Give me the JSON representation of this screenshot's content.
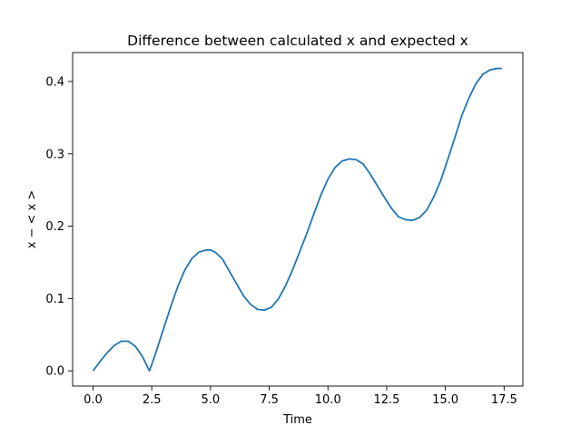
{
  "chart_data": {
    "type": "line",
    "title": "Difference between calculated x and expected x",
    "xlabel": "Time",
    "ylabel": "x − < x >",
    "xlim": [
      -0.87,
      18.3
    ],
    "ylim": [
      -0.021,
      0.44
    ],
    "xticks": [
      0.0,
      2.5,
      5.0,
      7.5,
      10.0,
      12.5,
      15.0,
      17.5
    ],
    "xtick_labels": [
      "0.0",
      "2.5",
      "5.0",
      "7.5",
      "10.0",
      "12.5",
      "15.0",
      "17.5"
    ],
    "yticks": [
      0.0,
      0.1,
      0.2,
      0.3,
      0.4
    ],
    "ytick_labels": [
      "0.0",
      "0.1",
      "0.2",
      "0.3",
      "0.4"
    ],
    "grid": false,
    "series": [
      {
        "color": "#1f77b4",
        "x": [
          0.0,
          0.3,
          0.6,
          0.9,
          1.2,
          1.5,
          1.8,
          2.1,
          2.4,
          2.6,
          2.8,
          3.0,
          3.3,
          3.6,
          3.9,
          4.2,
          4.5,
          4.8,
          5.0,
          5.2,
          5.5,
          5.8,
          6.1,
          6.4,
          6.7,
          7.0,
          7.3,
          7.6,
          7.9,
          8.2,
          8.5,
          8.8,
          9.1,
          9.4,
          9.7,
          10.0,
          10.3,
          10.6,
          10.9,
          11.2,
          11.5,
          11.8,
          12.1,
          12.4,
          12.7,
          13.0,
          13.3,
          13.6,
          13.9,
          14.2,
          14.5,
          14.8,
          15.1,
          15.4,
          15.7,
          16.0,
          16.3,
          16.6,
          16.9,
          17.2,
          17.4
        ],
        "y": [
          0.0,
          0.013,
          0.025,
          0.035,
          0.041,
          0.041,
          0.034,
          0.02,
          0.0,
          0.018,
          0.038,
          0.058,
          0.088,
          0.116,
          0.139,
          0.155,
          0.164,
          0.167,
          0.167,
          0.164,
          0.155,
          0.138,
          0.121,
          0.104,
          0.092,
          0.085,
          0.084,
          0.088,
          0.1,
          0.118,
          0.14,
          0.165,
          0.19,
          0.217,
          0.243,
          0.265,
          0.281,
          0.29,
          0.293,
          0.292,
          0.286,
          0.272,
          0.256,
          0.24,
          0.225,
          0.213,
          0.209,
          0.208,
          0.212,
          0.222,
          0.24,
          0.263,
          0.292,
          0.322,
          0.353,
          0.377,
          0.397,
          0.41,
          0.416,
          0.418,
          0.418
        ]
      }
    ]
  }
}
